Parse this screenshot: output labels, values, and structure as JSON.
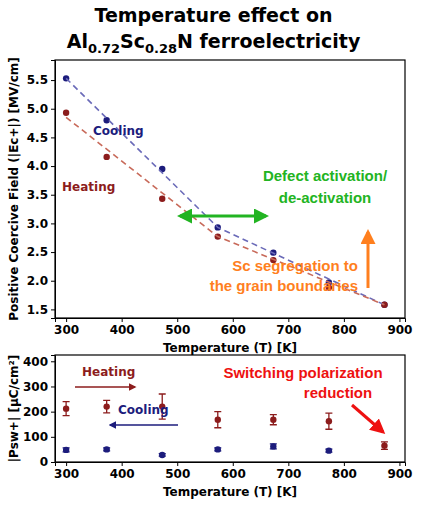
{
  "chart_data": [
    {
      "type": "scatter",
      "title": [
        "Temperature effect on",
        "Al0.72Sc0.28N ferroelectricity"
      ],
      "x_label": "Temperature (T)  [K]",
      "y_label": "Positive Coercive Field (|Ec+|)  [MV/cm]",
      "xlim": [
        280,
        910
      ],
      "ylim": [
        1.35,
        5.85
      ],
      "xticks": [
        300,
        400,
        500,
        600,
        700,
        800,
        900
      ],
      "yticks": [
        1.5,
        {
          "value": 2,
          "label": "2.0"
        },
        2.5,
        {
          "value": 3,
          "label": "3.0"
        },
        3.5,
        {
          "value": 4,
          "label": "4.0"
        },
        4.5,
        {
          "value": 5,
          "label": "5.0"
        },
        5.5
      ],
      "grid": false,
      "series": [
        {
          "name": "Cooling",
          "color": "#1c1c7c",
          "marker": "circle",
          "line_style": "none",
          "x": [
            300,
            373,
            473,
            573,
            673,
            773,
            873
          ],
          "values": [
            5.53,
            4.8,
            3.95,
            2.93,
            2.49,
            1.97,
            1.58
          ]
        },
        {
          "name": "Heating",
          "color": "#8c1c1c",
          "marker": "circle",
          "line_style": "none",
          "x": [
            300,
            373,
            473,
            573,
            673,
            773,
            873
          ],
          "values": [
            4.93,
            4.16,
            3.43,
            2.77,
            2.36,
            1.88,
            1.58
          ]
        },
        {
          "color": "#6a6ab8",
          "marker": "none",
          "line_style": "dashed",
          "x": [
            300,
            573,
            873
          ],
          "values": [
            5.53,
            2.93,
            1.58
          ]
        },
        {
          "color": "#c86a5a",
          "marker": "none",
          "line_style": "dashed",
          "x": [
            300,
            573,
            873
          ],
          "values": [
            4.85,
            2.77,
            1.58
          ]
        }
      ],
      "annotations": [
        {
          "text": [
            "Defect activation/",
            "de-activation"
          ],
          "color": "#22b422"
        },
        {
          "text": [
            "Sc segregation to",
            "the grain boundaries"
          ],
          "color": "#ff7f1e"
        }
      ]
    },
    {
      "type": "scatter",
      "x_label": "Temperature (T)  [K]",
      "y_label": "|Psw+|  [μC/cm²]",
      "xlim": [
        280,
        910
      ],
      "ylim": [
        0,
        425
      ],
      "xticks": [
        300,
        400,
        500,
        600,
        700,
        800,
        900
      ],
      "yticks": [
        0,
        100,
        200,
        300,
        400
      ],
      "grid": false,
      "series": [
        {
          "name": "Heating",
          "color": "#8c1c1c",
          "marker": "circle",
          "line_style": "none",
          "x": [
            300,
            373,
            473,
            573,
            673,
            773,
            873
          ],
          "values": [
            212,
            220,
            220,
            168,
            168,
            162,
            65
          ],
          "errors": [
            28,
            25,
            50,
            32,
            20,
            32,
            15
          ]
        },
        {
          "name": "Cooling",
          "color": "#1c1c7c",
          "marker": "circle",
          "line_style": "none",
          "x": [
            300,
            373,
            473,
            573,
            673,
            773
          ],
          "values": [
            48,
            50,
            28,
            50,
            62,
            45
          ],
          "errors": [
            8,
            6,
            5,
            6,
            10,
            6
          ]
        }
      ],
      "annotations": [
        {
          "text": [
            "Switching polarization",
            "reduction"
          ],
          "color": "#ee1111"
        }
      ]
    }
  ]
}
